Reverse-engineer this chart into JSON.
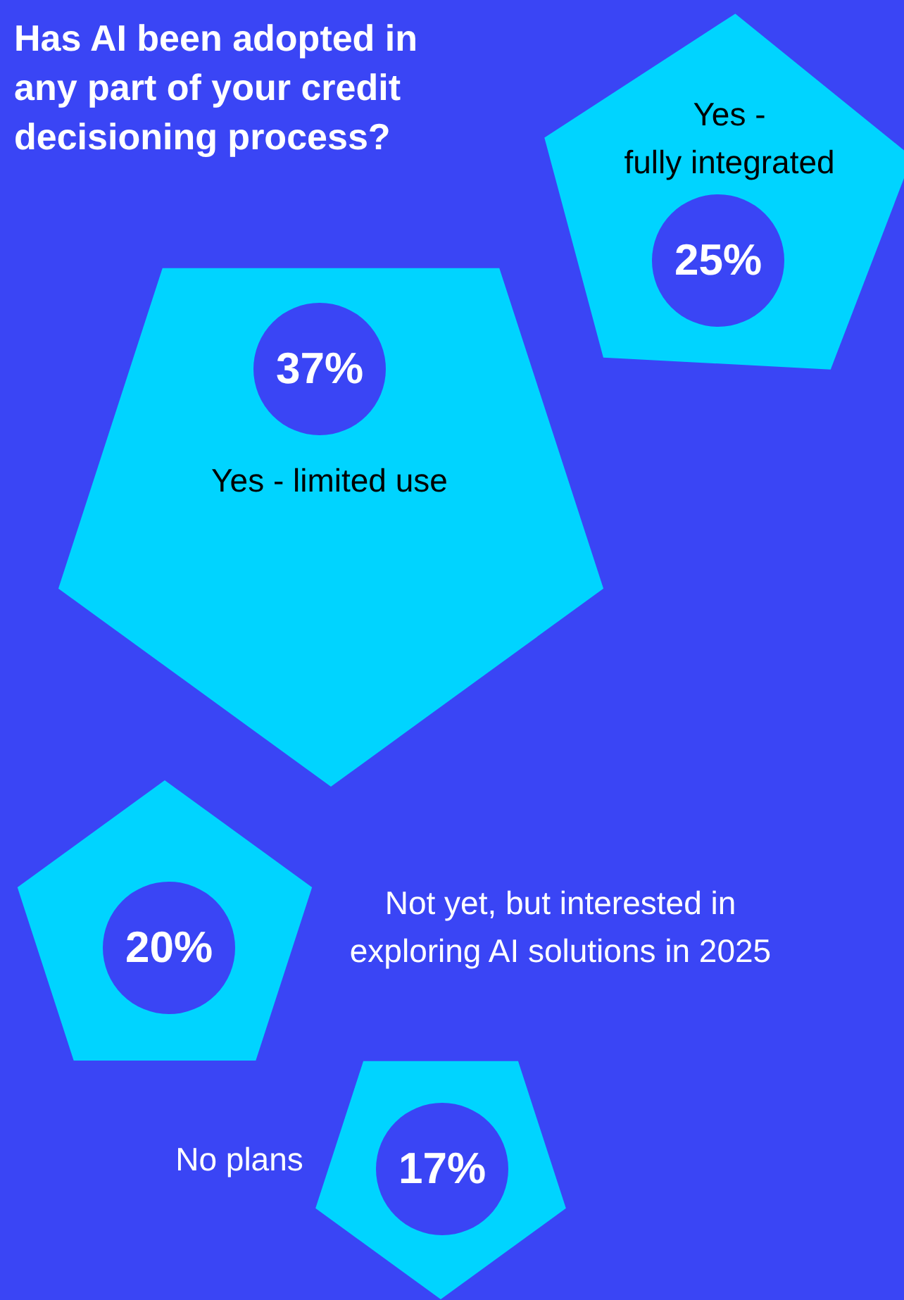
{
  "chart_data": {
    "type": "other",
    "title": "Has AI been adopted in any part of your credit decisioning process?",
    "categories": [
      "Yes -\nfully integrated",
      "Yes - limited use",
      "Not yet, but interested in\nexploring AI solutions in 2025",
      "No plans"
    ],
    "values": [
      25,
      37,
      20,
      17
    ],
    "value_labels": [
      "25%",
      "37%",
      "20%",
      "17%"
    ]
  }
}
